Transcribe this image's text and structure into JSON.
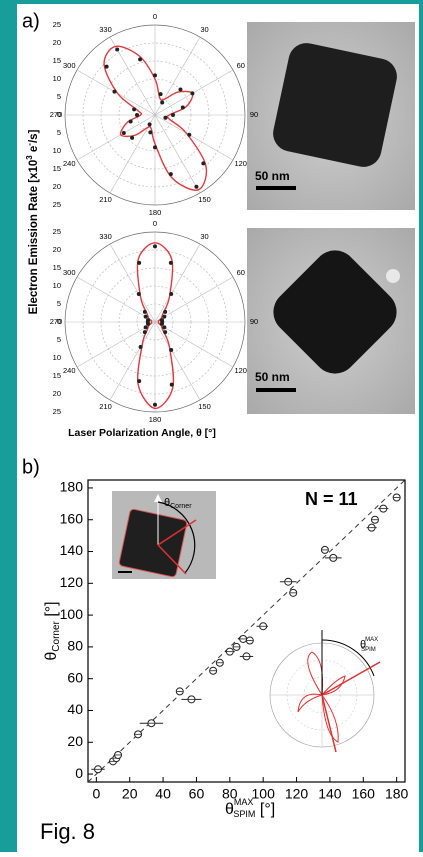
{
  "panel_a": {
    "label": "a)",
    "ylabel": "Electron Emission Rate [x10",
    "ylabel_sup": "3",
    "ylabel_end": " e",
    "ylabel_sup2": "-",
    "ylabel_tail": "/s]",
    "xlabel": "Laser Polarization Angle, θ [°]",
    "scale_bars": [
      "50 nm",
      "50 nm"
    ]
  },
  "panel_b": {
    "label": "b)",
    "inset_corner": {
      "symbol": "θ",
      "sub": "Corner"
    },
    "inset_spim": {
      "symbol": "θ",
      "sup": "MAX",
      "sub": "SPIM"
    }
  },
  "caption": "Fig. 8",
  "chart_data": [
    {
      "type": "polar",
      "theta": [
        0,
        15,
        30,
        45,
        60,
        75,
        90,
        105,
        120,
        135,
        150,
        165,
        180,
        195,
        210,
        225,
        240,
        255,
        270,
        285,
        300,
        315,
        330,
        345
      ],
      "series": [
        {
          "style": "line",
          "color": "#e0393e",
          "values": [
            10,
            5,
            5,
            9,
            12,
            9,
            4,
            4,
            10,
            20,
            24,
            18,
            8,
            4,
            4,
            8,
            11,
            8,
            4,
            5,
            12,
            20,
            22,
            17
          ]
        },
        {
          "style": "points",
          "color": "#222222",
          "values": [
            11,
            6,
            4,
            10,
            12,
            8,
            5,
            3,
            11,
            19,
            23,
            17,
            9,
            5,
            3,
            9,
            10,
            7,
            5,
            6,
            13,
            19,
            21,
            16
          ]
        }
      ],
      "rlim": [
        0,
        25
      ],
      "rticks": [
        0,
        5,
        10,
        15,
        20,
        25
      ],
      "thetaticks": [
        0,
        30,
        60,
        90,
        120,
        150,
        180,
        210,
        240,
        270,
        300,
        330
      ]
    },
    {
      "type": "polar",
      "theta": [
        0,
        15,
        30,
        45,
        60,
        75,
        90,
        105,
        120,
        135,
        150,
        165,
        180,
        195,
        210,
        225,
        240,
        255,
        270,
        285,
        300,
        315,
        330,
        345
      ],
      "series": [
        {
          "style": "line",
          "color": "#e0393e",
          "values": [
            22,
            18,
            8,
            3,
            2,
            1,
            1,
            1,
            2,
            3,
            8,
            19,
            24,
            18,
            7,
            3,
            2,
            1,
            1,
            1,
            2,
            3,
            8,
            18
          ]
        },
        {
          "style": "points",
          "color": "#222222",
          "values": [
            21,
            17,
            9,
            4,
            3,
            2,
            2,
            2,
            3,
            4,
            9,
            18,
            23,
            17,
            8,
            4,
            3,
            2,
            2,
            2,
            3,
            4,
            9,
            17
          ]
        }
      ],
      "rlim": [
        0,
        25
      ],
      "rticks": [
        0,
        5,
        10,
        15,
        20,
        25
      ],
      "thetaticks": [
        0,
        30,
        60,
        90,
        120,
        150,
        180,
        210,
        240,
        270,
        300,
        330
      ]
    },
    {
      "type": "scatter",
      "x": [
        1,
        10,
        12,
        13,
        25,
        33,
        50,
        57,
        70,
        74,
        80,
        84,
        88,
        90,
        92,
        100,
        115,
        118,
        137,
        142,
        165,
        167,
        172,
        180
      ],
      "values": [
        3,
        8,
        10,
        12,
        25,
        32,
        52,
        47,
        65,
        70,
        77,
        80,
        85,
        74,
        84,
        93,
        121,
        114,
        141,
        136,
        155,
        160,
        167,
        174
      ],
      "x_errors": [
        4,
        2,
        2,
        2,
        1,
        7,
        1,
        6,
        2,
        2,
        3,
        2,
        3,
        4,
        2,
        4,
        5,
        2,
        1,
        5,
        3,
        2,
        3,
        1
      ],
      "color": "#222222",
      "xlim": [
        -5,
        185
      ],
      "ylim": [
        -5,
        185
      ],
      "xticks": [
        0,
        20,
        40,
        60,
        80,
        100,
        120,
        140,
        160,
        180
      ],
      "yticks": [
        0,
        20,
        40,
        60,
        80,
        100,
        120,
        140,
        160,
        180
      ],
      "ylabel": {
        "symbol": "θ",
        "sub": "Corner",
        "unit": " [°]"
      },
      "xlabel": {
        "symbol": "θ",
        "sup": "MAX",
        "sub": "SPIM",
        "unit": " [°]"
      },
      "annotation": "N = 11"
    }
  ]
}
